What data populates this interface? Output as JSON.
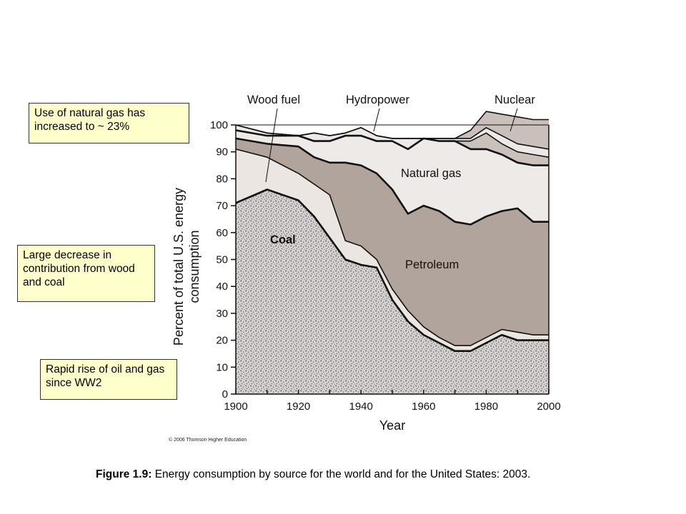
{
  "callouts": [
    "Use of natural gas has increased to ~ 23%",
    "Large decrease in contribution from wood and coal",
    "Rapid rise of oil and gas since WW2"
  ],
  "copyright": "© 2006 Thomson Higher Education",
  "caption": {
    "label": "Figure 1.9:",
    "text": " Energy consumption by source for the world and for the United States: 2003."
  },
  "chart_data": {
    "type": "area",
    "stacked": true,
    "xlabel": "Year",
    "ylabel": "Percent of total U.S. energy consumption",
    "xlim": [
      1900,
      2000
    ],
    "ylim": [
      0,
      100
    ],
    "x_ticks": [
      "1900",
      "1920",
      "1940",
      "1960",
      "1980",
      "2000"
    ],
    "y_ticks": [
      "0",
      "10",
      "20",
      "30",
      "40",
      "50",
      "60",
      "70",
      "80",
      "90",
      "100"
    ],
    "x": [
      1900,
      1910,
      1920,
      1925,
      1930,
      1935,
      1940,
      1945,
      1950,
      1955,
      1960,
      1965,
      1970,
      1975,
      1980,
      1985,
      1990,
      1995,
      2000
    ],
    "series": [
      {
        "name": "Coal",
        "color": "#d6d4d2",
        "values": [
          71,
          76,
          72,
          66,
          58,
          50,
          48,
          47,
          35,
          27,
          22,
          19,
          16,
          16,
          19,
          22,
          20,
          20,
          20
        ]
      },
      {
        "name": "",
        "color": "#ece6e3",
        "values": [
          20,
          12,
          10,
          12,
          16,
          7,
          7,
          3,
          4,
          4,
          3,
          2,
          2,
          2,
          2,
          2,
          3,
          2,
          2
        ]
      },
      {
        "name": "Petroleum",
        "color": "#b1a49c",
        "values": [
          4,
          5,
          10,
          10,
          12,
          29,
          30,
          32,
          37,
          36,
          45,
          47,
          46,
          45,
          45,
          44,
          46,
          42,
          42
        ]
      },
      {
        "name": "Natural gas",
        "color": "#eeeae8",
        "values": [
          3,
          3,
          4,
          6,
          8,
          10,
          11,
          12,
          18,
          24,
          25,
          26,
          30,
          28,
          25,
          21,
          17,
          21,
          21
        ]
      },
      {
        "name": "",
        "color": "#cac1bd",
        "values": [
          0,
          0,
          0,
          0,
          0,
          0,
          0,
          0,
          0,
          0,
          0,
          0,
          0,
          3,
          6,
          4,
          4,
          4,
          3
        ]
      },
      {
        "name": "",
        "color": "#ece9e7",
        "values": [
          2,
          1,
          0,
          3,
          2,
          1,
          3,
          2,
          1,
          4,
          0,
          1,
          1,
          1,
          2,
          3,
          3,
          3,
          3
        ]
      },
      {
        "name": "",
        "color": "#c9c0bb",
        "values": [
          0,
          0,
          0,
          0,
          0,
          0,
          0,
          0,
          0,
          0,
          0,
          0,
          0,
          3,
          6,
          8,
          10,
          10,
          11
        ]
      }
    ],
    "labels": {
      "wood_fuel": "Wood fuel",
      "hydropower": "Hydropower",
      "nuclear": "Nuclear",
      "natural_gas": "Natural gas",
      "petroleum": "Petroleum",
      "coal": "Coal"
    }
  }
}
